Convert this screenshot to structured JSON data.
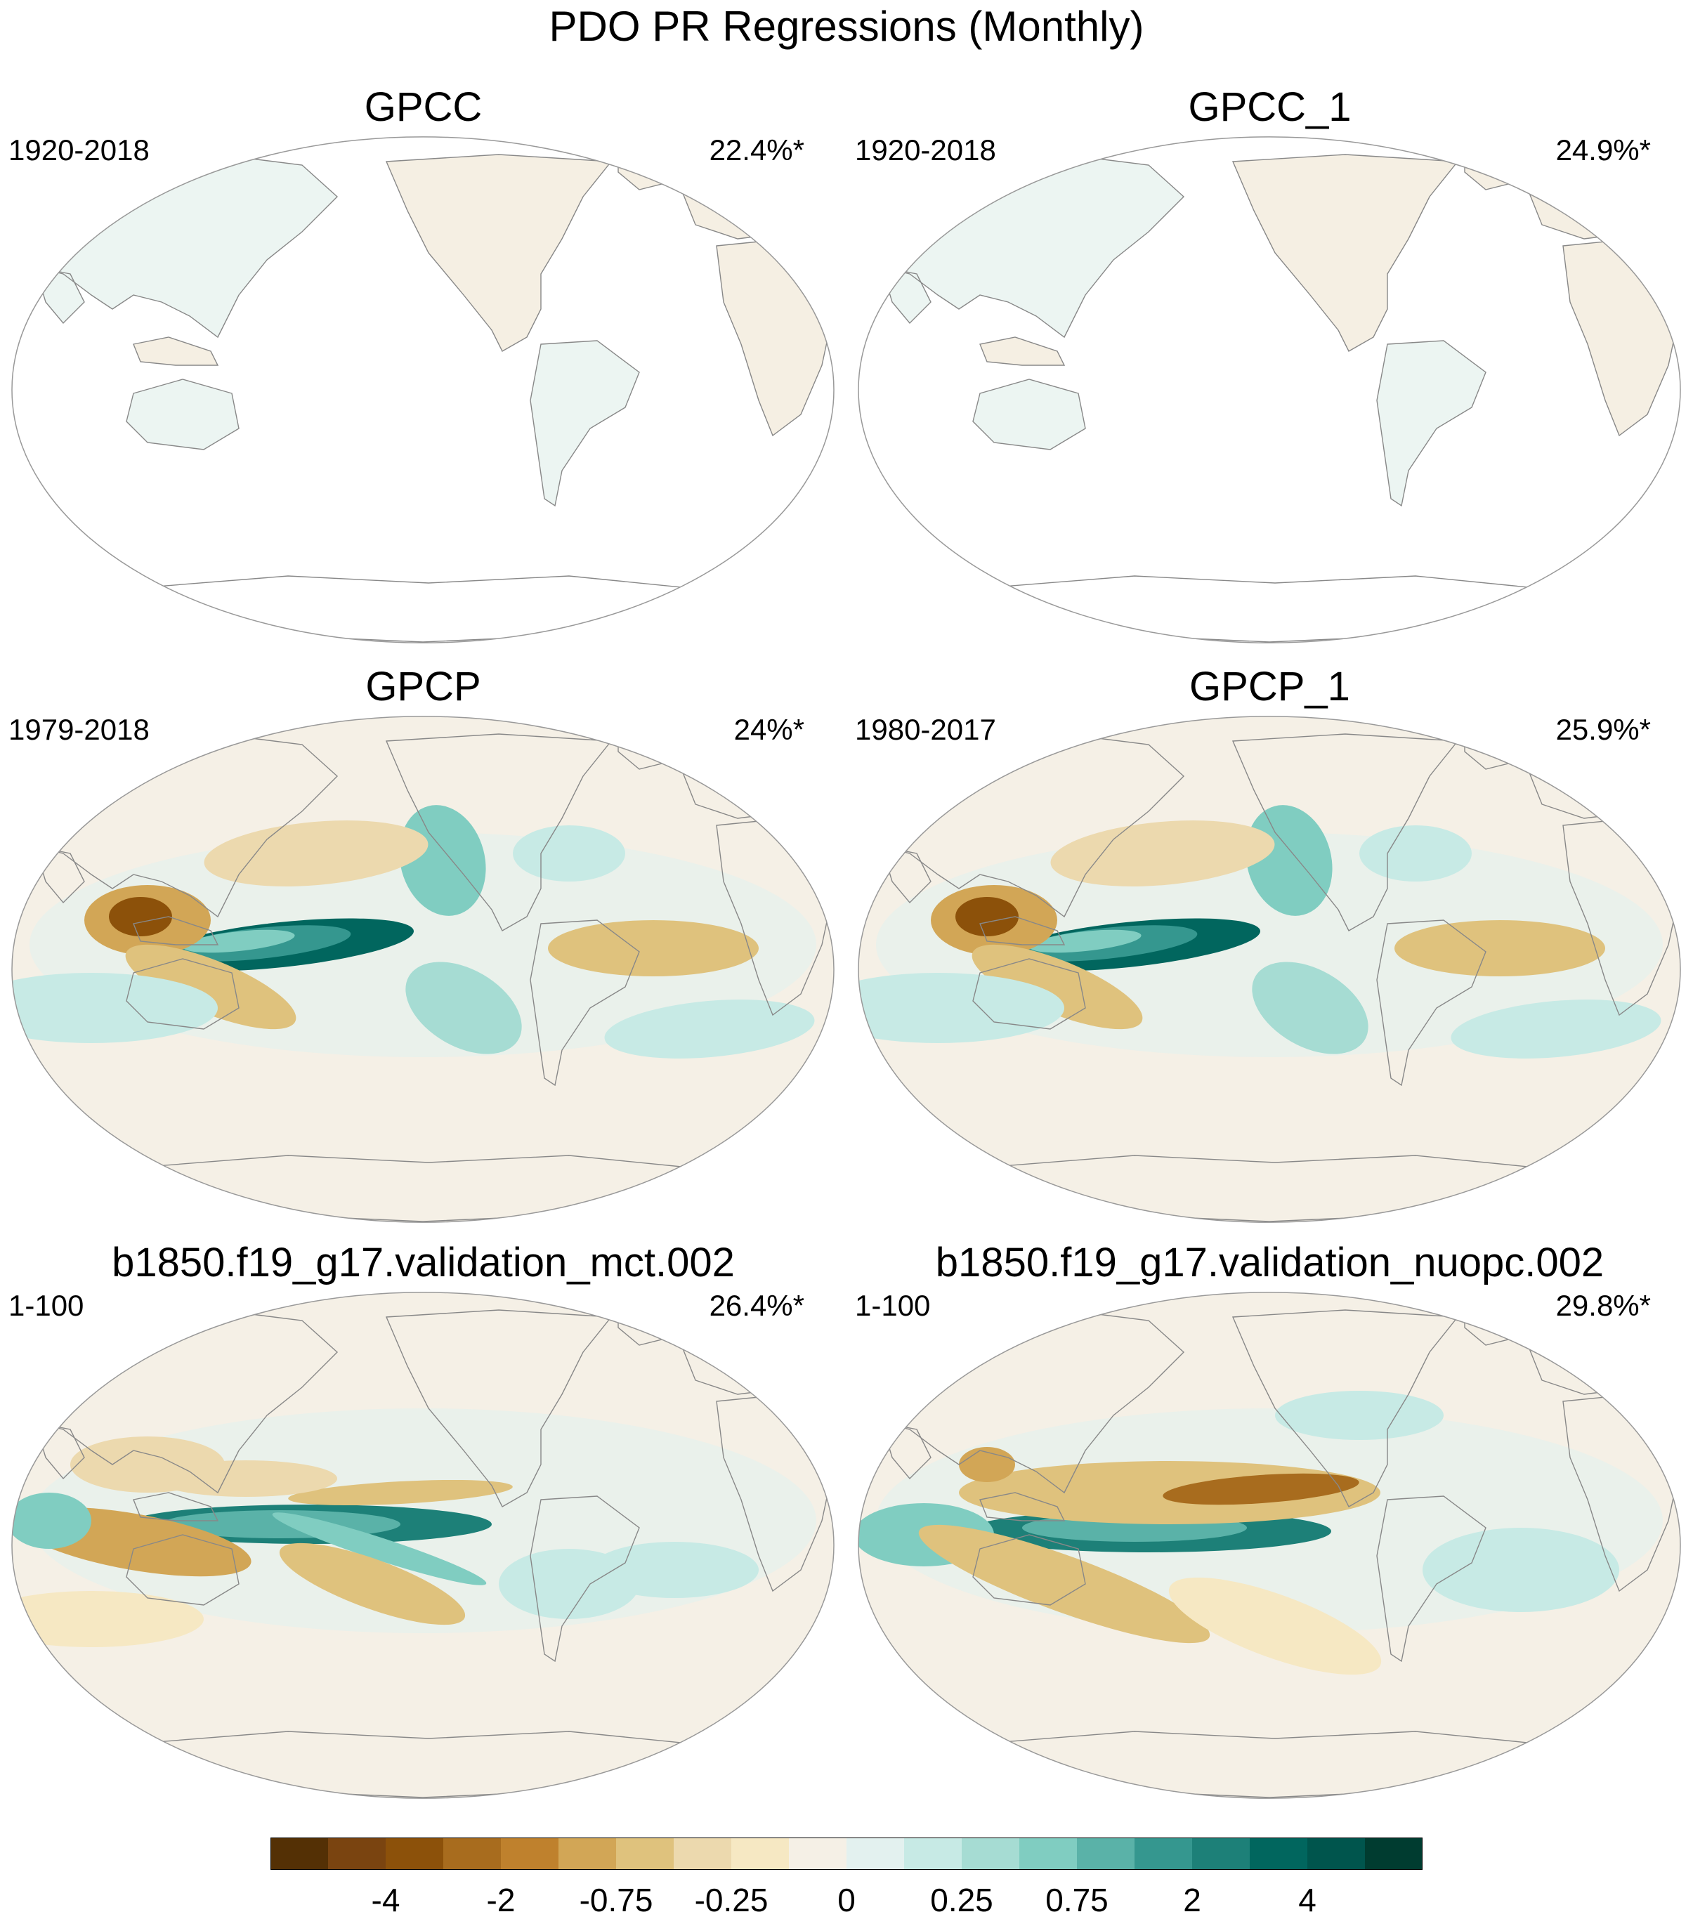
{
  "title": "PDO PR Regressions (Monthly)",
  "panels": [
    {
      "name": "GPCC",
      "period": "1920-2018",
      "pct": "22.4%*",
      "field": "land"
    },
    {
      "name": "GPCC_1",
      "period": "1920-2018",
      "pct": "24.9%*",
      "field": "land"
    },
    {
      "name": "GPCP",
      "period": "1979-2018",
      "pct": "24%*",
      "field": "obs"
    },
    {
      "name": "GPCP_1",
      "period": "1980-2017",
      "pct": "25.9%*",
      "field": "obs"
    },
    {
      "name": "b1850.f19_g17.validation_mct.002",
      "period": "1-100",
      "pct": "26.4%*",
      "field": "model"
    },
    {
      "name": "b1850.f19_g17.validation_nuopc.002",
      "period": "1-100",
      "pct": "29.8%*",
      "field": "nuopc"
    }
  ],
  "colorbar": {
    "colors": [
      "#543005",
      "#7a4410",
      "#8c510a",
      "#a86c1e",
      "#bf812d",
      "#d2a656",
      "#dfc27d",
      "#ecd9ae",
      "#f6e8c3",
      "#f5f0e6",
      "#e3f1ef",
      "#c7eae5",
      "#a6dcd3",
      "#80cdc1",
      "#5ab2a8",
      "#35978f",
      "#1d8078",
      "#01665e",
      "#00554d",
      "#003c30"
    ],
    "labels": [
      "-4",
      "-2",
      "-0.75",
      "-0.25",
      "0",
      "0.25",
      "0.75",
      "2",
      "4"
    ]
  },
  "colors": {
    "land_outline": "#888888",
    "frame": "#999999"
  }
}
